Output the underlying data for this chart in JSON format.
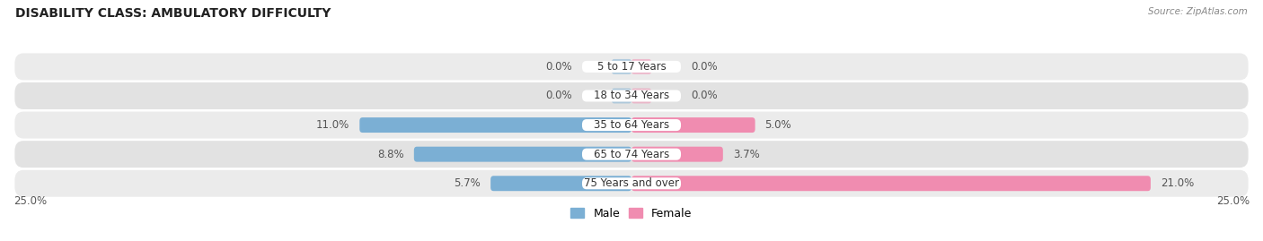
{
  "title": "DISABILITY CLASS: AMBULATORY DIFFICULTY",
  "source": "Source: ZipAtlas.com",
  "categories": [
    "5 to 17 Years",
    "18 to 34 Years",
    "35 to 64 Years",
    "65 to 74 Years",
    "75 Years and over"
  ],
  "male_values": [
    0.0,
    0.0,
    11.0,
    8.8,
    5.7
  ],
  "female_values": [
    0.0,
    0.0,
    5.0,
    3.7,
    21.0
  ],
  "max_val": 25.0,
  "male_color": "#7bafd4",
  "female_color": "#f08cb0",
  "title_fontsize": 10,
  "label_fontsize": 8.5,
  "value_fontsize": 8.5,
  "bar_height": 0.52,
  "legend_male": "Male",
  "legend_female": "Female",
  "row_colors": [
    "#ebebeb",
    "#e2e2e2"
  ],
  "zero_bar_width": 0.8
}
